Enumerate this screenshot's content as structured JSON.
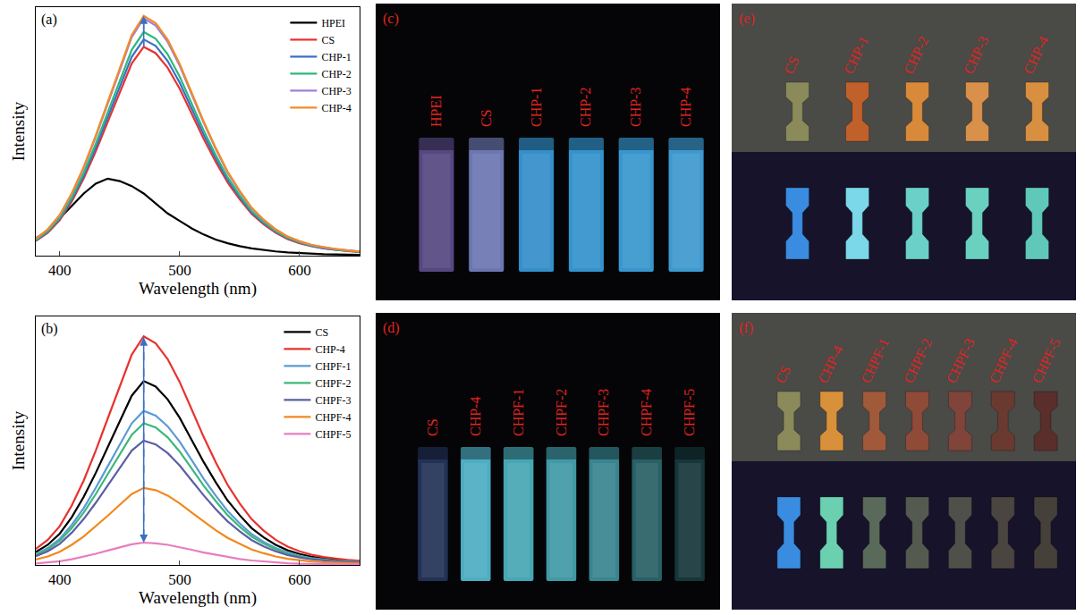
{
  "chart_data": [
    {
      "type": "line",
      "x_label": "Wavelength (nm)",
      "y_label": "Intensity",
      "annotations": [
        "(a)"
      ],
      "x": [
        380,
        390,
        400,
        410,
        420,
        430,
        440,
        450,
        460,
        470,
        480,
        490,
        500,
        510,
        520,
        530,
        540,
        550,
        560,
        570,
        580,
        590,
        600,
        610,
        620,
        630,
        640,
        650
      ],
      "xlim": [
        380,
        650
      ],
      "xticks": [
        400,
        500,
        600
      ],
      "ylim": [
        0,
        1
      ],
      "tick_labels": "x",
      "legend": "upper right",
      "series": [
        {
          "name": "HPEI",
          "color": "#000000",
          "values": [
            0.07,
            0.1,
            0.15,
            0.2,
            0.25,
            0.29,
            0.31,
            0.3,
            0.28,
            0.25,
            0.21,
            0.17,
            0.14,
            0.11,
            0.085,
            0.065,
            0.05,
            0.038,
            0.029,
            0.022,
            0.017,
            0.013,
            0.01,
            0.008,
            0.006,
            0.005,
            0.004,
            0.003
          ]
        },
        {
          "name": "CS",
          "color": "#e8322e",
          "values": [
            0.059,
            0.092,
            0.143,
            0.218,
            0.311,
            0.42,
            0.538,
            0.655,
            0.773,
            0.84,
            0.815,
            0.756,
            0.672,
            0.571,
            0.47,
            0.378,
            0.294,
            0.227,
            0.168,
            0.126,
            0.092,
            0.067,
            0.05,
            0.038,
            0.029,
            0.024,
            0.018,
            0.015
          ]
        },
        {
          "name": "CHP-1",
          "color": "#3a6fc4",
          "values": [
            0.061,
            0.096,
            0.148,
            0.226,
            0.322,
            0.435,
            0.557,
            0.679,
            0.8,
            0.87,
            0.844,
            0.783,
            0.696,
            0.592,
            0.487,
            0.392,
            0.305,
            0.235,
            0.174,
            0.131,
            0.096,
            0.07,
            0.052,
            0.039,
            0.03,
            0.024,
            0.019,
            0.016
          ]
        },
        {
          "name": "CHP-2",
          "color": "#2db87a",
          "values": [
            0.063,
            0.099,
            0.153,
            0.234,
            0.333,
            0.45,
            0.576,
            0.702,
            0.828,
            0.9,
            0.873,
            0.81,
            0.72,
            0.612,
            0.504,
            0.405,
            0.315,
            0.243,
            0.18,
            0.135,
            0.099,
            0.072,
            0.054,
            0.041,
            0.032,
            0.025,
            0.02,
            0.016
          ]
        },
        {
          "name": "CHP-3",
          "color": "#a07fd6",
          "values": [
            0.067,
            0.105,
            0.162,
            0.248,
            0.353,
            0.478,
            0.611,
            0.745,
            0.879,
            0.955,
            0.926,
            0.86,
            0.764,
            0.649,
            0.535,
            0.43,
            0.334,
            0.258,
            0.191,
            0.143,
            0.105,
            0.076,
            0.057,
            0.043,
            0.033,
            0.027,
            0.021,
            0.017
          ]
        },
        {
          "name": "CHP-4",
          "color": "#f28c28",
          "values": [
            0.068,
            0.106,
            0.164,
            0.251,
            0.357,
            0.483,
            0.618,
            0.753,
            0.888,
            0.965,
            0.936,
            0.869,
            0.772,
            0.656,
            0.54,
            0.434,
            0.338,
            0.261,
            0.193,
            0.145,
            0.106,
            0.077,
            0.058,
            0.043,
            0.034,
            0.027,
            0.021,
            0.017
          ]
        }
      ]
    },
    {
      "type": "line",
      "x_label": "Wavelength (nm)",
      "y_label": "Intensity",
      "annotations": [
        "(b)"
      ],
      "x": [
        380,
        390,
        400,
        410,
        420,
        430,
        440,
        450,
        460,
        470,
        480,
        490,
        500,
        510,
        520,
        530,
        540,
        550,
        560,
        570,
        580,
        590,
        600,
        610,
        620,
        630,
        640,
        650
      ],
      "xlim": [
        380,
        650
      ],
      "xticks": [
        400,
        500,
        600
      ],
      "ylim": [
        0,
        1
      ],
      "tick_labels": "x",
      "legend": "upper right",
      "series": [
        {
          "name": "CS",
          "color": "#000000",
          "values": [
            0.052,
            0.081,
            0.126,
            0.192,
            0.274,
            0.37,
            0.474,
            0.577,
            0.681,
            0.74,
            0.718,
            0.666,
            0.592,
            0.503,
            0.414,
            0.333,
            0.259,
            0.2,
            0.148,
            0.111,
            0.081,
            0.059,
            0.044,
            0.033,
            0.026,
            0.021,
            0.016,
            0.013
          ]
        },
        {
          "name": "CHP-4",
          "color": "#e8322e",
          "values": [
            0.064,
            0.101,
            0.156,
            0.239,
            0.34,
            0.46,
            0.589,
            0.718,
            0.846,
            0.92,
            0.892,
            0.828,
            0.736,
            0.626,
            0.515,
            0.414,
            0.322,
            0.248,
            0.184,
            0.138,
            0.101,
            0.074,
            0.055,
            0.041,
            0.032,
            0.026,
            0.02,
            0.017
          ]
        },
        {
          "name": "CHPF-1",
          "color": "#5b9bd5",
          "values": [
            0.043,
            0.068,
            0.105,
            0.161,
            0.229,
            0.31,
            0.397,
            0.484,
            0.57,
            0.62,
            0.601,
            0.558,
            0.496,
            0.422,
            0.347,
            0.279,
            0.217,
            0.167,
            0.124,
            0.093,
            0.068,
            0.05,
            0.037,
            0.028,
            0.022,
            0.017,
            0.014,
            0.011
          ]
        },
        {
          "name": "CHPF-2",
          "color": "#3cb879",
          "values": [
            0.04,
            0.063,
            0.097,
            0.148,
            0.211,
            0.285,
            0.365,
            0.445,
            0.524,
            0.57,
            0.553,
            0.513,
            0.456,
            0.388,
            0.319,
            0.257,
            0.2,
            0.154,
            0.114,
            0.086,
            0.063,
            0.046,
            0.034,
            0.026,
            0.02,
            0.016,
            0.013,
            0.01
          ]
        },
        {
          "name": "CHPF-3",
          "color": "#5b5ea6",
          "values": [
            0.035,
            0.055,
            0.085,
            0.13,
            0.185,
            0.25,
            0.32,
            0.39,
            0.46,
            0.5,
            0.485,
            0.45,
            0.4,
            0.34,
            0.28,
            0.225,
            0.175,
            0.135,
            0.1,
            0.075,
            0.055,
            0.04,
            0.03,
            0.023,
            0.018,
            0.014,
            0.011,
            0.009
          ]
        },
        {
          "name": "CHPF-4",
          "color": "#f0891e",
          "values": [
            0.022,
            0.034,
            0.053,
            0.081,
            0.115,
            0.155,
            0.198,
            0.242,
            0.285,
            0.31,
            0.301,
            0.279,
            0.248,
            0.211,
            0.174,
            0.14,
            0.109,
            0.084,
            0.062,
            0.047,
            0.034,
            0.025,
            0.019,
            0.014,
            0.011,
            0.009,
            0.007,
            0.006
          ]
        },
        {
          "name": "CHPF-5",
          "color": "#e87dc0",
          "values": [
            0.006,
            0.01,
            0.015,
            0.023,
            0.033,
            0.045,
            0.058,
            0.07,
            0.083,
            0.09,
            0.087,
            0.081,
            0.072,
            0.061,
            0.05,
            0.041,
            0.032,
            0.024,
            0.018,
            0.014,
            0.01,
            0.007,
            0.005,
            0.004,
            0.003,
            0.003,
            0.002,
            0.002
          ]
        }
      ]
    }
  ],
  "photos": [
    {
      "label": "(c)",
      "kind": "cuvettes",
      "rows": [
        {
          "items": [
            {
              "text": "HPEI",
              "color": "#5e4f8e"
            },
            {
              "text": "CS",
              "color": "#7884c4"
            },
            {
              "text": "CHP-1",
              "color": "#3a9fe0"
            },
            {
              "text": "CHP-2",
              "color": "#3aa2e2"
            },
            {
              "text": "CHP-3",
              "color": "#3ea6e4"
            },
            {
              "text": "CHP-4",
              "color": "#44aae6"
            }
          ]
        }
      ]
    },
    {
      "label": "(e)",
      "kind": "dumbbells",
      "rows": [
        {
          "items": [
            {
              "text": "CS",
              "color": "#8a8a5a"
            },
            {
              "text": "CHP-1",
              "color": "#c0602a"
            },
            {
              "text": "CHP-2",
              "color": "#d88a3a"
            },
            {
              "text": "CHP-3",
              "color": "#d8904a"
            },
            {
              "text": "CHP-4",
              "color": "#d89040"
            }
          ]
        },
        {
          "items": [
            {
              "color": "#3a8ce0"
            },
            {
              "color": "#7ad8e8"
            },
            {
              "color": "#6ad0c8"
            },
            {
              "color": "#6ad0c0"
            },
            {
              "color": "#60c8b8"
            }
          ]
        }
      ]
    },
    {
      "label": "(d)",
      "kind": "cuvettes",
      "rows": [
        {
          "items": [
            {
              "text": "CS",
              "color": "#26365f"
            },
            {
              "text": "CHP-4",
              "color": "#56c0d8"
            },
            {
              "text": "CHPF-1",
              "color": "#4fb8c8"
            },
            {
              "text": "CHPF-2",
              "color": "#48aab8"
            },
            {
              "text": "CHPF-3",
              "color": "#3e94a0"
            },
            {
              "text": "CHPF-4",
              "color": "#2c6a70"
            },
            {
              "text": "CHPF-5",
              "color": "#183c40"
            }
          ]
        }
      ]
    },
    {
      "label": "(f)",
      "kind": "dumbbells",
      "rows": [
        {
          "items": [
            {
              "text": "CS",
              "color": "#8a8a5a"
            },
            {
              "text": "CHP-4",
              "color": "#d8903a"
            },
            {
              "text": "CHPF-1",
              "color": "#a05a3a"
            },
            {
              "text": "CHPF-2",
              "color": "#904a38"
            },
            {
              "text": "CHPF-3",
              "color": "#80443a"
            },
            {
              "text": "CHPF-4",
              "color": "#6a3a30"
            },
            {
              "text": "CHPF-5",
              "color": "#5a2e2a"
            }
          ]
        },
        {
          "items": [
            {
              "color": "#3a8ce0"
            },
            {
              "color": "#6ad0b0"
            },
            {
              "color": "#5a6a5a"
            },
            {
              "color": "#555a50"
            },
            {
              "color": "#50504a"
            },
            {
              "color": "#4a4540"
            },
            {
              "color": "#45403a"
            }
          ]
        }
      ]
    }
  ]
}
